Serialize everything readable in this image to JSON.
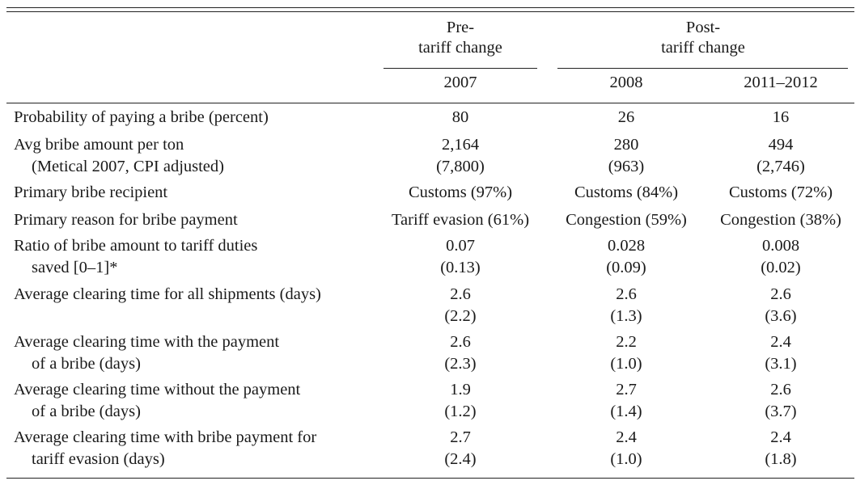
{
  "header": {
    "group_pre": [
      "Pre-",
      "tariff change"
    ],
    "group_post": [
      "Post-",
      "tariff change"
    ],
    "years": [
      "2007",
      "2008",
      "2011–2012"
    ]
  },
  "rows": [
    {
      "label": [
        "Probability of paying a bribe (percent)"
      ],
      "values": [
        [
          "80"
        ],
        [
          "26"
        ],
        [
          "16"
        ]
      ]
    },
    {
      "label": [
        "Avg bribe amount per ton",
        "(Metical 2007, CPI adjusted)"
      ],
      "values": [
        [
          "2,164",
          "(7,800)"
        ],
        [
          "280",
          "(963)"
        ],
        [
          "494",
          "(2,746)"
        ]
      ]
    },
    {
      "label": [
        "Primary bribe recipient"
      ],
      "values": [
        [
          "Customs (97%)"
        ],
        [
          "Customs (84%)"
        ],
        [
          "Customs (72%)"
        ]
      ]
    },
    {
      "label": [
        "Primary reason for bribe payment"
      ],
      "values": [
        [
          "Tariff evasion (61%)"
        ],
        [
          "Congestion (59%)"
        ],
        [
          "Congestion (38%)"
        ]
      ]
    },
    {
      "label": [
        "Ratio of bribe amount to tariff duties",
        "saved [0–1]*"
      ],
      "values": [
        [
          "0.07",
          "(0.13)"
        ],
        [
          "0.028",
          "(0.09)"
        ],
        [
          "0.008",
          "(0.02)"
        ]
      ]
    },
    {
      "label": [
        "Average clearing time for all shipments (days)"
      ],
      "values": [
        [
          "2.6",
          "(2.2)"
        ],
        [
          "2.6",
          "(1.3)"
        ],
        [
          "2.6",
          "(3.6)"
        ]
      ]
    },
    {
      "label": [
        "Average clearing time with the payment",
        "of a bribe (days)"
      ],
      "values": [
        [
          "2.6",
          "(2.3)"
        ],
        [
          "2.2",
          "(1.0)"
        ],
        [
          "2.4",
          "(3.1)"
        ]
      ]
    },
    {
      "label": [
        "Average clearing time without the payment",
        "of a bribe (days)"
      ],
      "values": [
        [
          "1.9",
          "(1.2)"
        ],
        [
          "2.7",
          "(1.4)"
        ],
        [
          "2.6",
          "(3.7)"
        ]
      ]
    },
    {
      "label": [
        "Average clearing time with bribe payment for",
        "tariff evasion (days)"
      ],
      "values": [
        [
          "2.7",
          "(2.4)"
        ],
        [
          "2.4",
          "(1.0)"
        ],
        [
          "2.4",
          "(1.8)"
        ]
      ]
    }
  ]
}
